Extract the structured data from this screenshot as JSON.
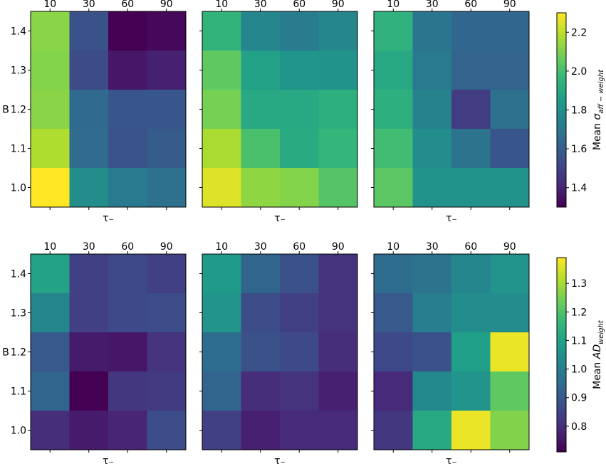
{
  "chart_data": [
    {
      "type": "heatmap",
      "panel": "top-left",
      "xlabel": "τ₋",
      "ylabel": "B",
      "x_ticks": [
        "10",
        "30",
        "60",
        "90"
      ],
      "y_ticks": [
        "1.4",
        "1.3",
        "1.2",
        "1.1",
        "1.0"
      ],
      "values": [
        [
          2.12,
          1.55,
          1.3,
          1.32
        ],
        [
          2.11,
          1.53,
          1.36,
          1.39
        ],
        [
          2.12,
          1.64,
          1.57,
          1.57
        ],
        [
          2.18,
          1.65,
          1.56,
          1.59
        ],
        [
          2.3,
          1.79,
          1.71,
          1.67
        ]
      ],
      "colorbar": "top"
    },
    {
      "type": "heatmap",
      "panel": "top-middle",
      "xlabel": "τ₋",
      "ylabel": "",
      "x_ticks": [
        "10",
        "30",
        "60",
        "90"
      ],
      "y_ticks": [],
      "values": [
        [
          1.95,
          1.76,
          1.72,
          1.76
        ],
        [
          2.05,
          1.87,
          1.82,
          1.81
        ],
        [
          2.09,
          1.9,
          1.9,
          1.93
        ],
        [
          2.17,
          2.01,
          1.91,
          1.96
        ],
        [
          2.25,
          2.13,
          2.11,
          2.03
        ]
      ],
      "colorbar": "top"
    },
    {
      "type": "heatmap",
      "panel": "top-right",
      "xlabel": "τ₋",
      "ylabel": "",
      "x_ticks": [
        "10",
        "30",
        "60",
        "90"
      ],
      "y_ticks": [],
      "values": [
        [
          1.94,
          1.69,
          1.63,
          1.63
        ],
        [
          1.9,
          1.71,
          1.62,
          1.62
        ],
        [
          1.93,
          1.75,
          1.48,
          1.67
        ],
        [
          1.99,
          1.79,
          1.68,
          1.57
        ],
        [
          2.04,
          1.81,
          1.81,
          1.81
        ]
      ],
      "colorbar": "top"
    },
    {
      "type": "heatmap",
      "panel": "bottom-left",
      "xlabel": "τ₋",
      "ylabel": "B",
      "x_ticks": [
        "10",
        "30",
        "60",
        "90"
      ],
      "y_ticks": [
        "1.4",
        "1.3",
        "1.2",
        "1.1",
        "1.0"
      ],
      "values": [
        [
          1.1,
          0.84,
          0.86,
          0.84
        ],
        [
          1.02,
          0.84,
          0.86,
          0.87
        ],
        [
          0.9,
          0.76,
          0.75,
          0.81
        ],
        [
          0.93,
          0.71,
          0.82,
          0.83
        ],
        [
          0.8,
          0.76,
          0.78,
          0.87
        ]
      ],
      "colorbar": "bottom"
    },
    {
      "type": "heatmap",
      "panel": "bottom-middle",
      "xlabel": "τ₋",
      "ylabel": "",
      "x_ticks": [
        "10",
        "30",
        "60",
        "90"
      ],
      "y_ticks": [],
      "values": [
        [
          1.08,
          0.93,
          0.88,
          0.81
        ],
        [
          1.06,
          0.87,
          0.84,
          0.81
        ],
        [
          0.95,
          0.88,
          0.86,
          0.8
        ],
        [
          0.93,
          0.8,
          0.81,
          0.77
        ],
        [
          0.84,
          0.77,
          0.79,
          0.79
        ]
      ],
      "colorbar": "bottom"
    },
    {
      "type": "heatmap",
      "panel": "bottom-right",
      "xlabel": "τ₋",
      "ylabel": "",
      "x_ticks": [
        "10",
        "30",
        "60",
        "90"
      ],
      "y_ticks": [],
      "values": [
        [
          0.95,
          0.97,
          1.02,
          1.06
        ],
        [
          0.9,
          1.0,
          1.04,
          1.04
        ],
        [
          0.86,
          0.88,
          1.09,
          1.37
        ],
        [
          0.79,
          1.03,
          1.06,
          1.22
        ],
        [
          0.82,
          1.12,
          1.37,
          1.26
        ]
      ],
      "colorbar": "bottom"
    }
  ],
  "colorbars": {
    "top": {
      "label_prefix": "Mean ",
      "label_symbol": "σ",
      "label_subscript": "aff − weight",
      "min": 1.3,
      "max": 2.3,
      "ticks": [
        "1.4",
        "1.6",
        "1.8",
        "2.0",
        "2.2"
      ]
    },
    "bottom": {
      "label_prefix": "Mean ",
      "label_symbol": "AD",
      "label_subscript": "weight",
      "min": 0.71,
      "max": 1.39,
      "ticks": [
        "0.8",
        "0.9",
        "1.0",
        "1.1",
        "1.2",
        "1.3"
      ]
    }
  },
  "colormap": {
    "name": "viridis",
    "stops": [
      "#440154",
      "#482878",
      "#3e4989",
      "#31688e",
      "#26828e",
      "#1f9e89",
      "#35b779",
      "#6ece58",
      "#b5de2b",
      "#fde725"
    ]
  }
}
